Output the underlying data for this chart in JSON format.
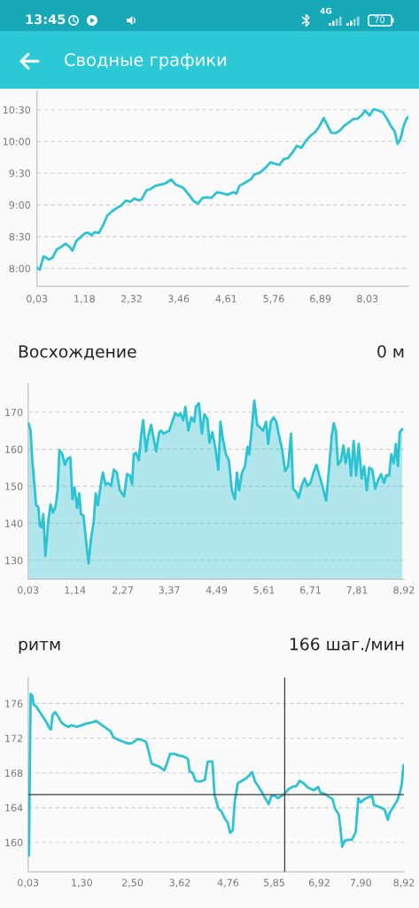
{
  "chart_data": [
    {
      "type": "other",
      "title": "Сводные графики",
      "annotations": [
        "13:45",
        "4G",
        "70"
      ]
    },
    {
      "type": "line",
      "x": [
        0.03,
        0.1,
        0.19,
        0.32,
        0.41,
        0.51,
        0.6,
        0.72,
        0.82,
        0.89,
        0.98,
        1.1,
        1.21,
        1.28,
        1.35,
        1.42,
        1.53,
        1.64,
        1.73,
        1.85,
        1.96,
        2.07,
        2.18,
        2.28,
        2.39,
        2.5,
        2.57,
        2.68,
        2.78,
        2.89,
        3.03,
        3.14,
        3.28,
        3.39,
        3.57,
        3.71,
        3.82,
        3.93,
        4.04,
        4.14,
        4.25,
        4.39,
        4.54,
        4.64,
        4.79,
        4.86,
        4.93,
        5.07,
        5.22,
        5.29,
        5.43,
        5.57,
        5.68,
        5.79,
        5.9,
        6.0,
        6.11,
        6.22,
        6.32,
        6.43,
        6.54,
        6.65,
        6.75,
        6.86,
        6.97,
        7.04,
        7.15,
        7.25,
        7.36,
        7.47,
        7.58,
        7.68,
        7.79,
        7.9,
        7.97,
        8.08,
        8.18,
        8.29,
        8.4,
        8.51,
        8.61,
        8.69,
        8.76,
        8.83,
        8.9,
        8.97,
        9.02
      ],
      "series": [
        {
          "color": "#2cc3d2",
          "values": [
            8.01,
            7.98,
            8.19,
            8.14,
            8.17,
            8.3,
            8.33,
            8.39,
            8.34,
            8.28,
            8.43,
            8.5,
            8.56,
            8.56,
            8.52,
            8.57,
            8.56,
            8.69,
            8.83,
            8.9,
            8.95,
            8.99,
            9.07,
            9.05,
            9.1,
            9.07,
            9.09,
            9.23,
            9.25,
            9.3,
            9.32,
            9.34,
            9.4,
            9.32,
            9.27,
            9.16,
            9.06,
            9.02,
            9.11,
            9.12,
            9.11,
            9.2,
            9.18,
            9.16,
            9.2,
            9.18,
            9.3,
            9.35,
            9.41,
            9.48,
            9.51,
            9.59,
            9.67,
            9.65,
            9.63,
            9.72,
            9.74,
            9.83,
            9.93,
            9.9,
            10.01,
            10.09,
            10.14,
            10.23,
            10.37,
            10.28,
            10.14,
            10.13,
            10.17,
            10.25,
            10.3,
            10.35,
            10.36,
            10.42,
            10.49,
            10.41,
            10.51,
            10.49,
            10.46,
            10.35,
            10.23,
            10.16,
            9.96,
            10.04,
            10.23,
            10.35,
            10.39
          ]
        }
      ],
      "xlim": [
        0.03,
        9.02
      ],
      "ylim": [
        7.72,
        10.79
      ],
      "xticks": [
        {
          "value": 0.03,
          "label": "0,03"
        },
        {
          "value": 1.18,
          "label": "1,18"
        },
        {
          "value": 2.32,
          "label": "2,32"
        },
        {
          "value": 3.46,
          "label": "3,46"
        },
        {
          "value": 4.61,
          "label": "4,61"
        },
        {
          "value": 5.76,
          "label": "5,76"
        },
        {
          "value": 6.89,
          "label": "6,89"
        },
        {
          "value": 8.03,
          "label": "8,03"
        }
      ],
      "yticks": [
        {
          "value": 8,
          "label": "8:00"
        },
        {
          "value": 8.5,
          "label": "8:30"
        },
        {
          "value": 9,
          "label": "9:00"
        },
        {
          "value": 9.5,
          "label": "9:30"
        },
        {
          "value": 10,
          "label": "10:00"
        },
        {
          "value": 10.5,
          "label": "10:30"
        }
      ],
      "grid": "y"
    },
    {
      "type": "area",
      "title": "Восхождение",
      "annotations": [
        "0 м"
      ],
      "x": [
        0.04,
        0.09,
        0.13,
        0.19,
        0.22,
        0.27,
        0.31,
        0.35,
        0.39,
        0.44,
        0.51,
        0.56,
        0.62,
        0.68,
        0.73,
        0.77,
        0.84,
        0.9,
        0.96,
        1.03,
        1.08,
        1.13,
        1.19,
        1.24,
        1.28,
        1.34,
        1.41,
        1.46,
        1.52,
        1.58,
        1.63,
        1.68,
        1.75,
        1.8,
        1.86,
        1.92,
        1.99,
        2.06,
        2.13,
        2.2,
        2.3,
        2.37,
        2.44,
        2.49,
        2.53,
        2.58,
        2.65,
        2.7,
        2.75,
        2.82,
        2.87,
        2.94,
        2.99,
        3.06,
        3.13,
        3.18,
        3.23,
        3.3,
        3.37,
        3.44,
        3.51,
        3.58,
        3.63,
        3.7,
        3.75,
        3.82,
        3.89,
        3.96,
        4.0,
        4.07,
        4.14,
        4.2,
        4.27,
        4.32,
        4.39,
        4.46,
        4.53,
        4.58,
        4.64,
        4.71,
        4.78,
        4.85,
        4.92,
        4.97,
        5.02,
        5.09,
        5.16,
        5.22,
        5.26,
        5.31,
        5.38,
        5.45,
        5.52,
        5.59,
        5.66,
        5.71,
        5.77,
        5.84,
        5.9,
        5.97,
        6.04,
        6.11,
        6.18,
        6.25,
        6.3,
        6.37,
        6.43,
        6.5,
        6.57,
        6.64,
        6.71,
        6.78,
        6.85,
        6.92,
        6.99,
        7.08,
        7.14,
        7.21,
        7.26,
        7.31,
        7.36,
        7.43,
        7.49,
        7.54,
        7.61,
        7.67,
        7.73,
        7.79,
        7.85,
        7.92,
        7.98,
        8.04,
        8.1,
        8.17,
        8.24,
        8.31,
        8.38,
        8.45,
        8.5,
        8.57,
        8.62,
        8.68,
        8.73,
        8.78,
        8.82,
        8.88
      ],
      "series": [
        {
          "color": "#2cc3d2",
          "values": [
            167.0,
            165.0,
            157.0,
            148.9,
            144.9,
            144.5,
            139.3,
            138.9,
            142.5,
            131.2,
            140.9,
            145.1,
            142.9,
            144.5,
            148.9,
            159.8,
            158.6,
            155.8,
            157.4,
            157.8,
            146.5,
            149.7,
            144.1,
            148.1,
            142.5,
            142.1,
            134.4,
            129.2,
            136.0,
            140.1,
            148.1,
            144.9,
            150.5,
            153.7,
            150.5,
            150.9,
            150.1,
            154.5,
            153.7,
            148.9,
            147.3,
            153.3,
            152.9,
            150.5,
            158.6,
            159.0,
            157.0,
            163.4,
            167.8,
            159.4,
            163.4,
            166.6,
            163.4,
            159.4,
            164.6,
            165.0,
            164.2,
            164.6,
            165.0,
            167.4,
            169.7,
            169.0,
            169.7,
            167.8,
            171.4,
            165.0,
            168.6,
            167.4,
            171.4,
            172.4,
            164.2,
            169.4,
            168.2,
            161.8,
            164.6,
            160.2,
            154.5,
            167.4,
            162.6,
            158.6,
            157.0,
            148.9,
            146.5,
            153.7,
            148.9,
            153.7,
            155.4,
            160.6,
            158.6,
            164.2,
            173.1,
            166.6,
            165.8,
            165.0,
            167.4,
            161.4,
            167.4,
            168.6,
            167.4,
            163.4,
            159.8,
            154.1,
            155.4,
            164.2,
            149.3,
            148.5,
            146.9,
            150.1,
            152.1,
            150.1,
            150.9,
            153.7,
            155.8,
            152.9,
            150.1,
            146.1,
            153.7,
            163.4,
            167.0,
            165.0,
            155.8,
            157.0,
            161.0,
            156.2,
            160.2,
            152.9,
            162.2,
            152.9,
            161.4,
            152.1,
            155.4,
            148.9,
            155.0,
            154.5,
            149.3,
            151.7,
            153.3,
            150.9,
            152.9,
            152.9,
            158.6,
            156.2,
            161.4,
            155.4,
            164.6,
            165.4
          ]
        }
      ],
      "xlim": [
        0.03,
        8.92
      ],
      "ylim": [
        124.9,
        177.6
      ],
      "xticks": [
        {
          "value": 0.03,
          "label": "0,03"
        },
        {
          "value": 1.14,
          "label": "1,14"
        },
        {
          "value": 2.27,
          "label": "2,27"
        },
        {
          "value": 3.37,
          "label": "3,37"
        },
        {
          "value": 4.49,
          "label": "4,49"
        },
        {
          "value": 5.61,
          "label": "5,61"
        },
        {
          "value": 6.71,
          "label": "6,71"
        },
        {
          "value": 7.81,
          "label": "7,81"
        },
        {
          "value": 8.92,
          "label": "8,92"
        }
      ],
      "yticks": [
        130,
        140,
        150,
        160,
        170
      ],
      "grid": "y"
    },
    {
      "type": "line",
      "title": "ритм",
      "annotations": [
        "166 шаг./мин"
      ],
      "x": [
        0.05,
        0.09,
        0.13,
        0.16,
        0.23,
        0.31,
        0.39,
        0.47,
        0.53,
        0.57,
        0.61,
        0.67,
        0.74,
        0.82,
        0.9,
        0.98,
        1.06,
        1.18,
        1.3,
        1.41,
        1.53,
        1.64,
        1.75,
        1.87,
        1.98,
        2.05,
        2.17,
        2.28,
        2.39,
        2.47,
        2.54,
        2.61,
        2.72,
        2.82,
        2.89,
        2.95,
        3.04,
        3.14,
        3.25,
        3.3,
        3.39,
        3.49,
        3.6,
        3.71,
        3.81,
        3.85,
        3.92,
        3.99,
        4.1,
        4.21,
        4.28,
        4.39,
        4.44,
        4.53,
        4.6,
        4.69,
        4.75,
        4.81,
        4.87,
        4.92,
        4.99,
        5.09,
        5.19,
        5.26,
        5.33,
        5.4,
        5.47,
        5.57,
        5.64,
        5.72,
        5.78,
        5.86,
        5.94,
        6.01,
        6.1,
        6.18,
        6.28,
        6.38,
        6.45,
        6.55,
        6.65,
        6.79,
        6.89,
        6.95,
        7.04,
        7.13,
        7.23,
        7.29,
        7.38,
        7.42,
        7.46,
        7.52,
        7.59,
        7.69,
        7.78,
        7.84,
        7.9,
        7.99,
        8.08,
        8.17,
        8.21,
        8.28,
        8.37,
        8.46,
        8.54,
        8.58,
        8.67,
        8.76,
        8.83,
        8.87,
        8.91
      ],
      "series": [
        {
          "color": "#2cc3d2",
          "values": [
            158.5,
            177.1,
            176.9,
            175.9,
            175.6,
            175.0,
            174.4,
            173.8,
            173.2,
            173.0,
            174.7,
            175.0,
            174.5,
            173.8,
            173.5,
            173.3,
            173.5,
            173.3,
            173.5,
            173.7,
            173.8,
            174.0,
            173.6,
            173.2,
            172.8,
            172.1,
            171.8,
            171.6,
            171.4,
            171.4,
            171.6,
            171.9,
            171.8,
            171.6,
            170.3,
            169.1,
            168.9,
            168.7,
            168.3,
            168.9,
            170.2,
            170.2,
            170.0,
            169.9,
            169.6,
            168.2,
            168.0,
            167.1,
            167.0,
            167.2,
            169.3,
            169.3,
            165.5,
            163.9,
            163.6,
            162.7,
            162.3,
            161.1,
            161.4,
            164.8,
            166.8,
            167.1,
            167.4,
            167.7,
            168.1,
            167.0,
            166.5,
            165.7,
            165.1,
            164.4,
            165.3,
            165.4,
            165.1,
            165.3,
            165.6,
            166.1,
            166.4,
            166.5,
            167.1,
            166.8,
            166.3,
            166.0,
            166.4,
            165.7,
            165.6,
            165.3,
            165.0,
            163.9,
            163.2,
            161.5,
            159.5,
            160.2,
            160.3,
            160.3,
            161.2,
            165.1,
            164.6,
            165.0,
            165.2,
            165.3,
            164.3,
            164.2,
            164.0,
            163.8,
            162.6,
            163.4,
            164.1,
            164.8,
            165.8,
            166.8,
            168.9
          ]
        }
      ],
      "xlim": [
        0.03,
        8.92
      ],
      "ylim": [
        156.6,
        179.0
      ],
      "xticks": [
        {
          "value": 0.03,
          "label": "0,03"
        },
        {
          "value": 1.3,
          "label": "1,30"
        },
        {
          "value": 2.5,
          "label": "2,50"
        },
        {
          "value": 3.62,
          "label": "3,62"
        },
        {
          "value": 4.76,
          "label": "4,76"
        },
        {
          "value": 5.85,
          "label": "5,85"
        },
        {
          "value": 6.92,
          "label": "6,92"
        },
        {
          "value": 7.9,
          "label": "7,90"
        },
        {
          "value": 8.92,
          "label": "8,92"
        }
      ],
      "yticks": [
        160,
        164,
        168,
        172,
        176
      ],
      "grid": "y",
      "ref_lines": [
        {
          "axis": "x",
          "value": 6.1,
          "color": "#3a3a3a"
        },
        {
          "axis": "y",
          "value": 165.5,
          "color": "#3a3a3a"
        }
      ]
    }
  ]
}
